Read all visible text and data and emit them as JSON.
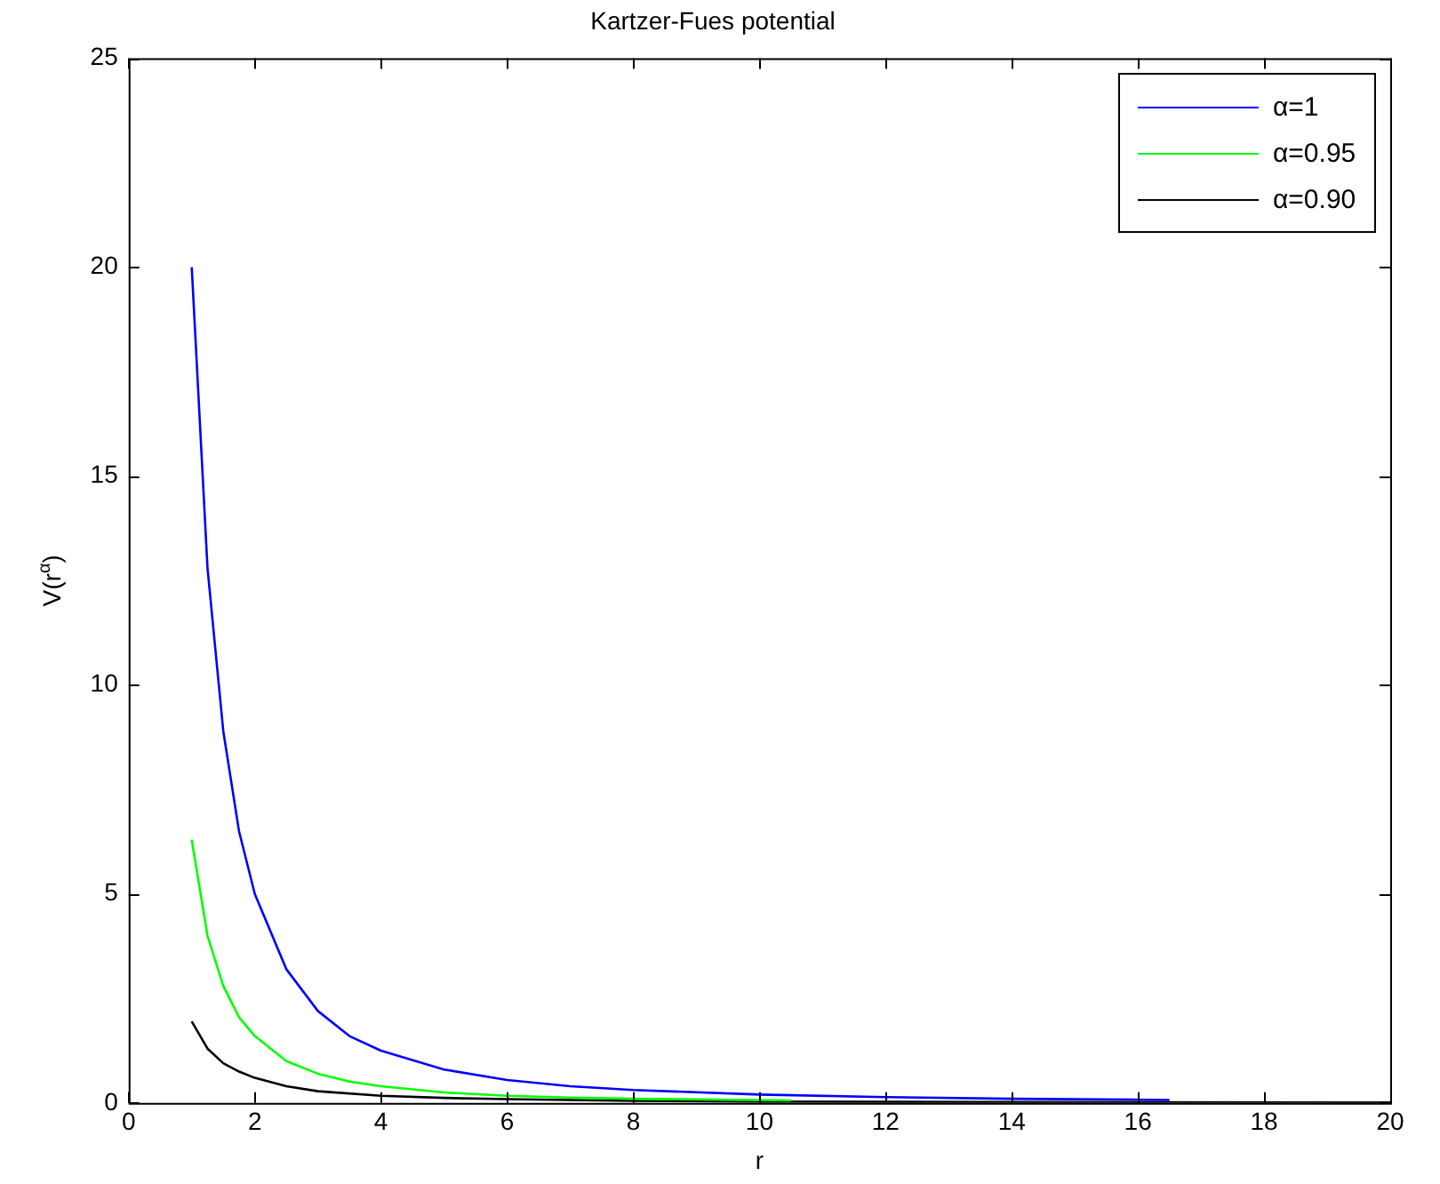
{
  "chart_data": {
    "type": "line",
    "title": "Kartzer-Fues potential",
    "xlabel": "r",
    "ylabel": "V(r$^{α}$)",
    "xlim": [
      0,
      20
    ],
    "xticks": [
      0,
      2,
      4,
      6,
      8,
      10,
      12,
      14,
      16,
      18,
      20
    ],
    "ylim": [
      0,
      25
    ],
    "yticks": [
      0,
      5,
      10,
      15,
      20,
      25
    ],
    "grid": false,
    "legend": "top right",
    "marker": "none",
    "line_style": "solid",
    "series": [
      {
        "name": "α=1",
        "color": "#0000ff",
        "x": [
          1,
          1.25,
          1.5,
          1.75,
          2,
          2.5,
          3,
          3.5,
          4,
          5,
          6,
          7,
          8,
          10,
          12,
          14,
          16.5
        ],
        "values": [
          20,
          12.8,
          8.9,
          6.5,
          5,
          3.2,
          2.2,
          1.6,
          1.25,
          0.8,
          0.55,
          0.4,
          0.31,
          0.2,
          0.14,
          0.1,
          0.07
        ]
      },
      {
        "name": "α=0.95",
        "color": "#00ff00",
        "x": [
          1,
          1.25,
          1.5,
          1.75,
          2,
          2.5,
          3,
          3.5,
          4,
          5,
          6,
          7,
          8,
          10.5
        ],
        "values": [
          6.3,
          4.0,
          2.8,
          2.05,
          1.6,
          1.0,
          0.7,
          0.51,
          0.4,
          0.25,
          0.17,
          0.13,
          0.1,
          0.06
        ]
      },
      {
        "name": "α=0.90",
        "color": "#000000",
        "x": [
          1,
          1.25,
          1.5,
          1.75,
          2,
          2.5,
          3,
          4,
          5,
          6,
          8,
          10,
          14,
          20
        ],
        "values": [
          1.95,
          1.3,
          0.95,
          0.75,
          0.6,
          0.4,
          0.28,
          0.17,
          0.12,
          0.09,
          0.05,
          0.03,
          0.02,
          0.01
        ]
      }
    ]
  }
}
